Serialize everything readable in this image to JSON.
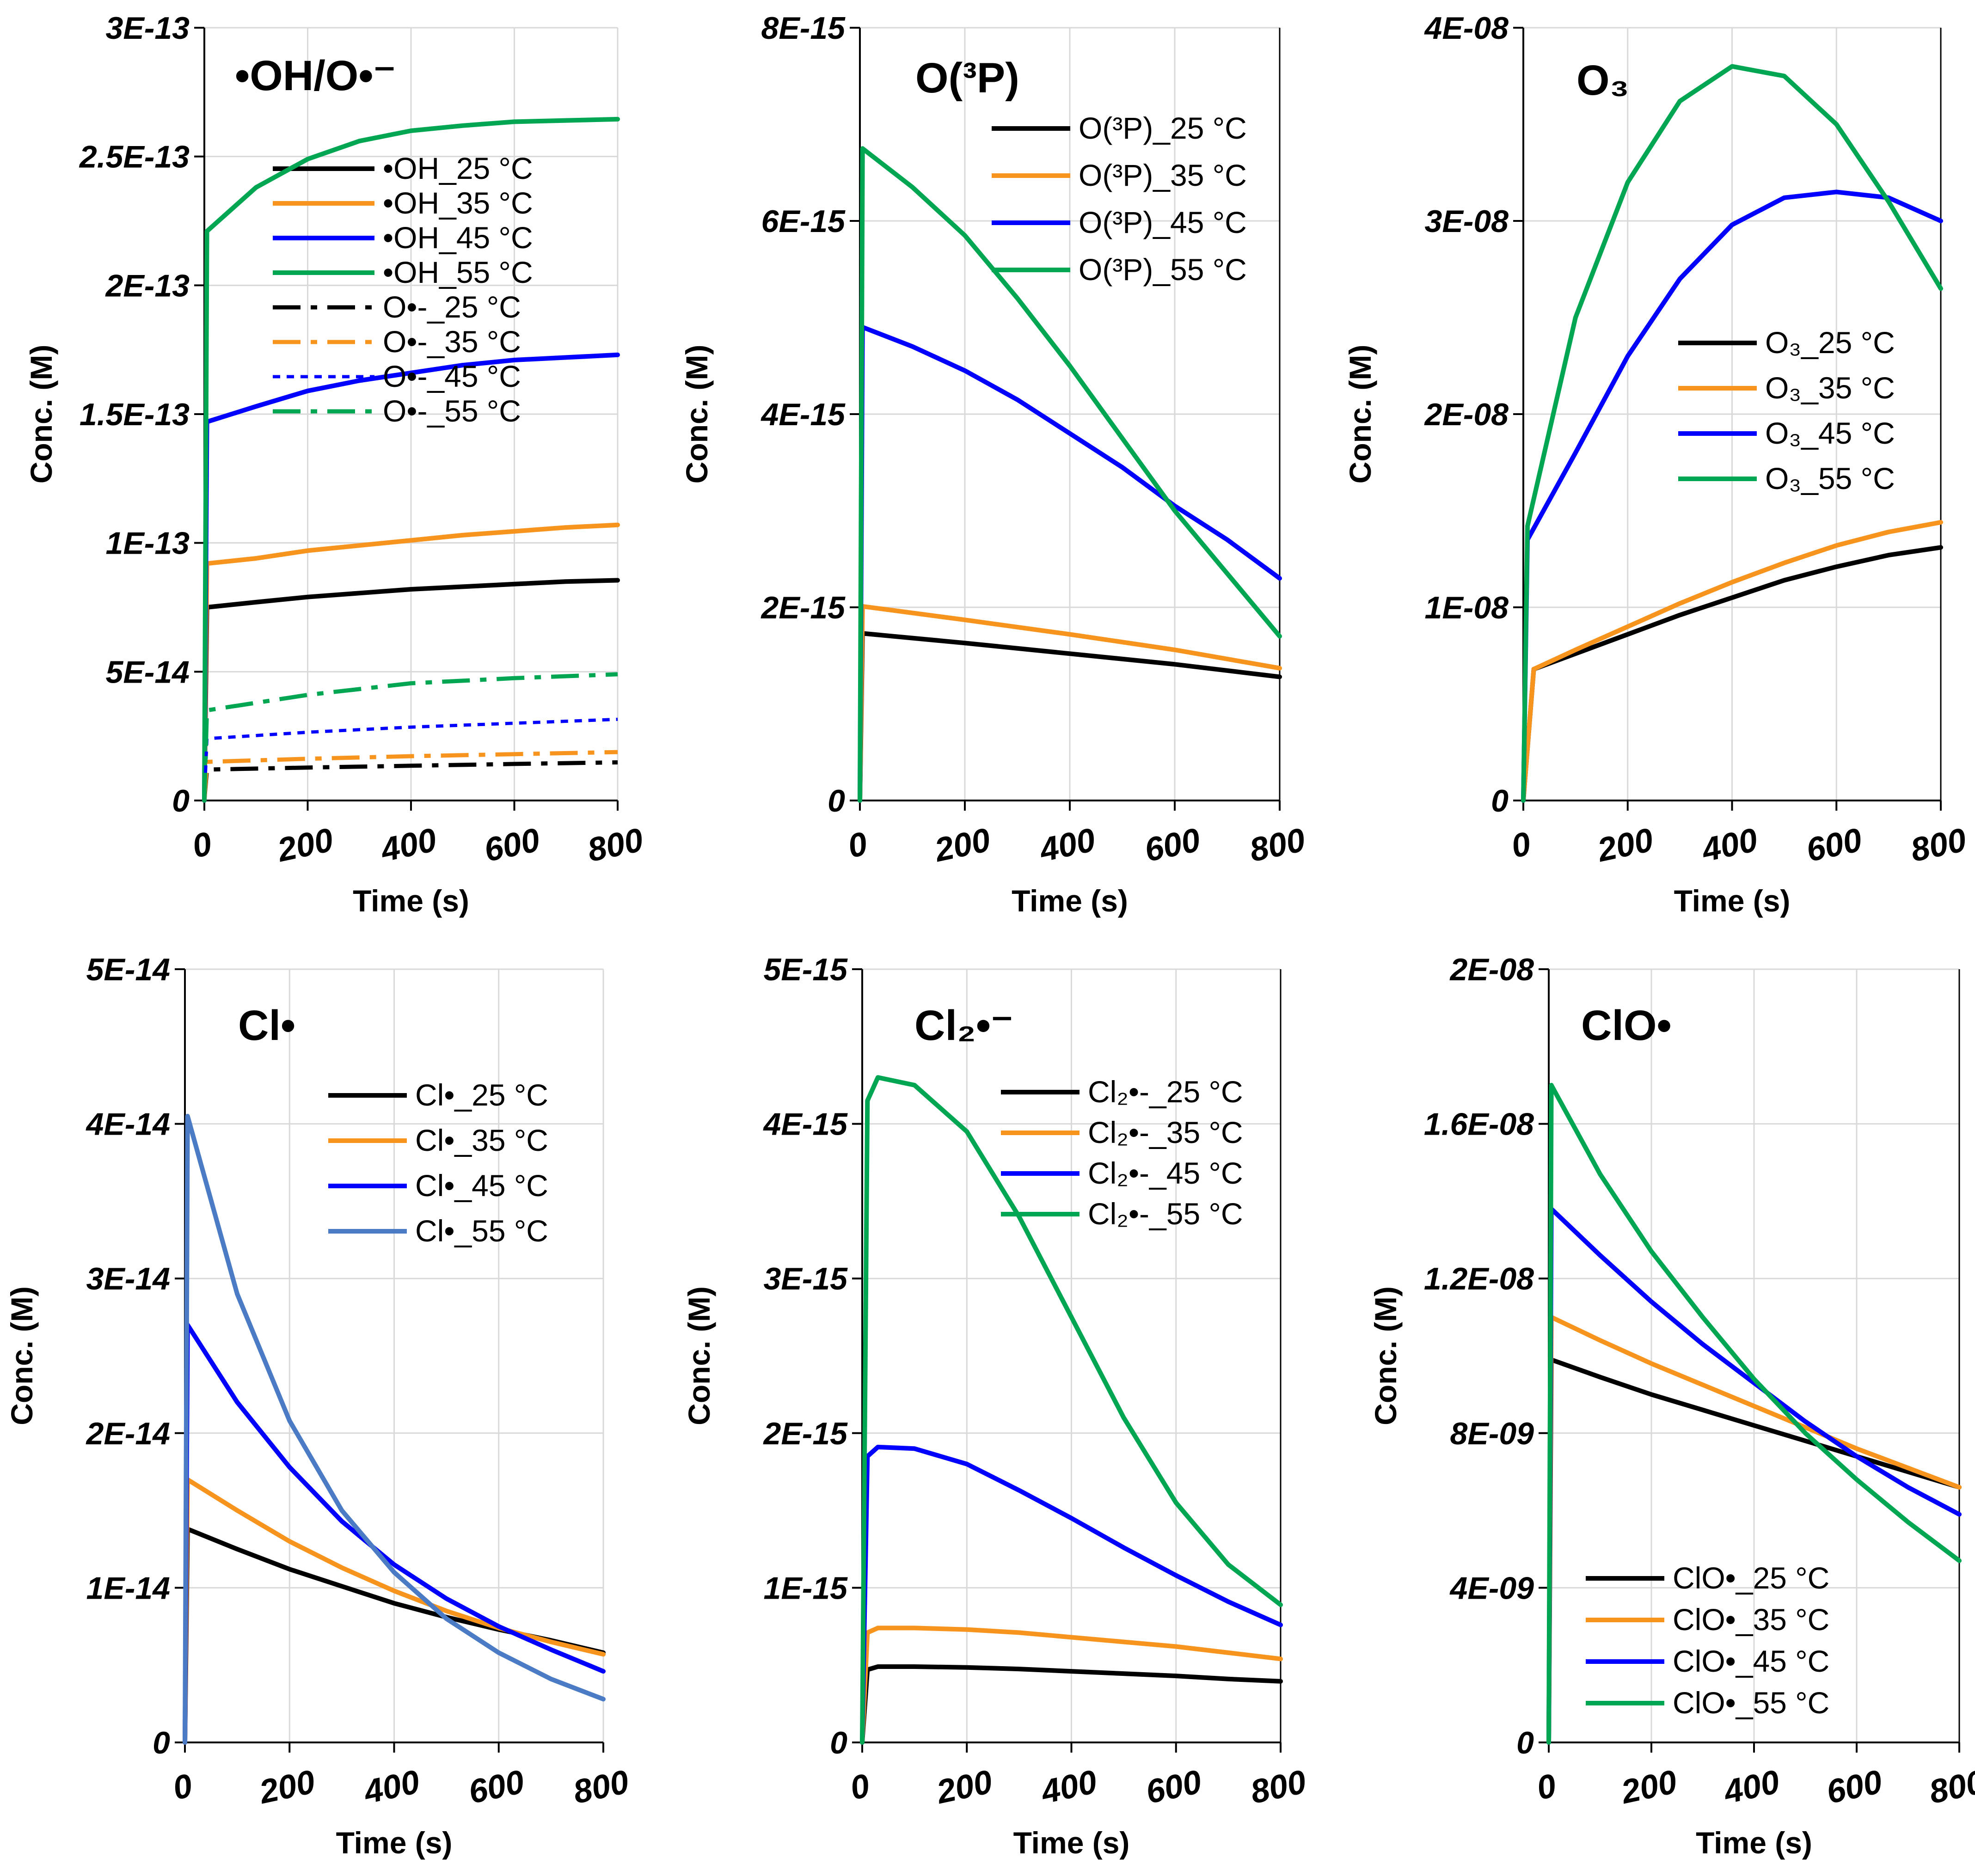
{
  "colors": {
    "t25": "#000000",
    "t35": "#F7941D",
    "t45": "#0000FF",
    "t55": "#00A651",
    "t55_cl": "#4A7BC4",
    "grid": "#D9D9D9"
  },
  "chart_data": [
    {
      "id": "oh",
      "type": "line",
      "title": "•OH/O•⁻",
      "xlabel": "Time (s)",
      "ylabel": "Conc. (M)",
      "xlim": [
        0,
        800
      ],
      "ylim": [
        0,
        3e-13
      ],
      "xticks": [
        "0",
        "200",
        "400",
        "600",
        "800"
      ],
      "yticks": [
        "0",
        "5E-14",
        "1E-13",
        "1.5E-13",
        "2E-13",
        "2.5E-13",
        "3E-13"
      ],
      "legend": "top-right",
      "series": [
        {
          "name": "•OH_25 °C",
          "color_key": "t25",
          "dash": "solid",
          "x": [
            0,
            5,
            100,
            200,
            300,
            400,
            500,
            600,
            700,
            800
          ],
          "y": [
            0,
            7.5e-14,
            7.7e-14,
            7.9e-14,
            8.05e-14,
            8.2e-14,
            8.3e-14,
            8.4e-14,
            8.5e-14,
            8.55e-14
          ]
        },
        {
          "name": "•OH_35 °C",
          "color_key": "t35",
          "dash": "solid",
          "x": [
            0,
            5,
            100,
            200,
            300,
            400,
            500,
            600,
            700,
            800
          ],
          "y": [
            0,
            9.2e-14,
            9.4e-14,
            9.7e-14,
            9.9e-14,
            1.01e-13,
            1.03e-13,
            1.045e-13,
            1.06e-13,
            1.07e-13
          ]
        },
        {
          "name": "•OH_45 °C",
          "color_key": "t45",
          "dash": "solid",
          "x": [
            0,
            5,
            100,
            200,
            300,
            400,
            500,
            600,
            700,
            800
          ],
          "y": [
            0,
            1.47e-13,
            1.53e-13,
            1.59e-13,
            1.63e-13,
            1.66e-13,
            1.69e-13,
            1.71e-13,
            1.72e-13,
            1.73e-13
          ]
        },
        {
          "name": "•OH_55 °C",
          "color_key": "t55",
          "dash": "solid",
          "x": [
            0,
            5,
            100,
            200,
            300,
            400,
            500,
            600,
            700,
            800
          ],
          "y": [
            0,
            2.21e-13,
            2.38e-13,
            2.49e-13,
            2.56e-13,
            2.6e-13,
            2.62e-13,
            2.635e-13,
            2.64e-13,
            2.645e-13
          ]
        },
        {
          "name": "O•-_25 °C",
          "color_key": "t25",
          "dash": "dashdot",
          "x": [
            0,
            5,
            200,
            400,
            600,
            800
          ],
          "y": [
            0,
            1.2e-14,
            1.28e-14,
            1.35e-14,
            1.42e-14,
            1.48e-14
          ]
        },
        {
          "name": "O•-_35 °C",
          "color_key": "t35",
          "dash": "dashdot",
          "x": [
            0,
            5,
            200,
            400,
            600,
            800
          ],
          "y": [
            0,
            1.5e-14,
            1.62e-14,
            1.72e-14,
            1.8e-14,
            1.88e-14
          ]
        },
        {
          "name": "O•-_45 °C",
          "color_key": "t45",
          "dash": "dot",
          "x": [
            0,
            5,
            200,
            400,
            600,
            800
          ],
          "y": [
            0,
            2.4e-14,
            2.65e-14,
            2.85e-14,
            3e-14,
            3.15e-14
          ]
        },
        {
          "name": "O•-_55 °C",
          "color_key": "t55",
          "dash": "dashdot",
          "x": [
            0,
            5,
            200,
            400,
            600,
            800
          ],
          "y": [
            0,
            3.5e-14,
            4.1e-14,
            4.55e-14,
            4.75e-14,
            4.9e-14
          ]
        }
      ]
    },
    {
      "id": "o3p",
      "type": "line",
      "title": "O(³P)",
      "xlabel": "Time (s)",
      "ylabel": "Conc. (M)",
      "xlim": [
        0,
        800
      ],
      "ylim": [
        0,
        8e-15
      ],
      "xticks": [
        "0",
        "200",
        "400",
        "600",
        "800"
      ],
      "yticks": [
        "0",
        "2E-15",
        "4E-15",
        "6E-15",
        "8E-15"
      ],
      "legend": "top-right",
      "series": [
        {
          "name": "O(³P)_25 °C",
          "color_key": "t25",
          "dash": "solid",
          "x": [
            0,
            5,
            200,
            400,
            600,
            800
          ],
          "y": [
            0,
            1.73e-15,
            1.63e-15,
            1.52e-15,
            1.41e-15,
            1.28e-15
          ]
        },
        {
          "name": "O(³P)_35 °C",
          "color_key": "t35",
          "dash": "solid",
          "x": [
            0,
            5,
            200,
            400,
            600,
            800
          ],
          "y": [
            0,
            2.01e-15,
            1.87e-15,
            1.72e-15,
            1.56e-15,
            1.37e-15
          ]
        },
        {
          "name": "O(³P)_45 °C",
          "color_key": "t45",
          "dash": "solid",
          "x": [
            0,
            5,
            100,
            200,
            300,
            400,
            500,
            600,
            700,
            800
          ],
          "y": [
            0,
            4.9e-15,
            4.7e-15,
            4.45e-15,
            4.15e-15,
            3.8e-15,
            3.45e-15,
            3.05e-15,
            2.7e-15,
            2.3e-15
          ]
        },
        {
          "name": "O(³P)_55 °C",
          "color_key": "t55",
          "dash": "solid",
          "x": [
            0,
            5,
            100,
            200,
            300,
            400,
            500,
            600,
            700,
            800
          ],
          "y": [
            0,
            6.75e-15,
            6.35e-15,
            5.85e-15,
            5.2e-15,
            4.5e-15,
            3.75e-15,
            3e-15,
            2.35e-15,
            1.7e-15
          ]
        }
      ]
    },
    {
      "id": "o3",
      "type": "line",
      "title": "O₃",
      "xlabel": "Time (s)",
      "ylabel": "Conc. (M)",
      "xlim": [
        0,
        800
      ],
      "ylim": [
        0,
        4e-08
      ],
      "xticks": [
        "0",
        "200",
        "400",
        "600",
        "800"
      ],
      "yticks": [
        "0",
        "1E-08",
        "2E-08",
        "3E-08",
        "4E-08"
      ],
      "legend": "middle-right",
      "series": [
        {
          "name": "O₃_25 °C",
          "color_key": "t25",
          "dash": "solid",
          "x": [
            0,
            20,
            100,
            200,
            300,
            400,
            500,
            600,
            700,
            800
          ],
          "y": [
            0,
            6.8e-09,
            7.6e-09,
            8.6e-09,
            9.6e-09,
            1.05e-08,
            1.14e-08,
            1.21e-08,
            1.27e-08,
            1.31e-08
          ]
        },
        {
          "name": "O₃_35 °C",
          "color_key": "t35",
          "dash": "solid",
          "x": [
            0,
            20,
            100,
            200,
            300,
            400,
            500,
            600,
            700,
            800
          ],
          "y": [
            0,
            6.8e-09,
            7.8e-09,
            9e-09,
            1.02e-08,
            1.13e-08,
            1.23e-08,
            1.32e-08,
            1.39e-08,
            1.44e-08
          ]
        },
        {
          "name": "O₃_45 °C",
          "color_key": "t45",
          "dash": "solid",
          "x": [
            0,
            8,
            100,
            200,
            300,
            400,
            500,
            600,
            700,
            800
          ],
          "y": [
            0,
            1.35e-08,
            1.8e-08,
            2.3e-08,
            2.7e-08,
            2.98e-08,
            3.12e-08,
            3.15e-08,
            3.12e-08,
            3e-08
          ]
        },
        {
          "name": "O₃_55 °C",
          "color_key": "t55",
          "dash": "solid",
          "x": [
            0,
            8,
            100,
            200,
            300,
            400,
            500,
            600,
            700,
            800
          ],
          "y": [
            0,
            1.42e-08,
            2.5e-08,
            3.2e-08,
            3.62e-08,
            3.8e-08,
            3.75e-08,
            3.5e-08,
            3.1e-08,
            2.65e-08
          ]
        }
      ]
    },
    {
      "id": "cl",
      "type": "line",
      "title": "Cl•",
      "xlabel": "Time (s)",
      "ylabel": "Conc. (M)",
      "xlim": [
        0,
        800
      ],
      "ylim": [
        0,
        5e-14
      ],
      "xticks": [
        "0",
        "200",
        "400",
        "600",
        "800"
      ],
      "yticks": [
        "0",
        "1E-14",
        "2E-14",
        "3E-14",
        "4E-14",
        "5E-14"
      ],
      "legend": "top-right",
      "series": [
        {
          "name": "Cl•_25 °C",
          "color_key": "t25",
          "dash": "solid",
          "x": [
            0,
            5,
            100,
            200,
            300,
            400,
            500,
            600,
            700,
            800
          ],
          "y": [
            0,
            1.38e-14,
            1.25e-14,
            1.12e-14,
            1.01e-14,
            9e-15,
            8.1e-15,
            7.3e-15,
            6.6e-15,
            5.8e-15
          ]
        },
        {
          "name": "Cl•_35 °C",
          "color_key": "t35",
          "dash": "solid",
          "x": [
            0,
            5,
            100,
            200,
            300,
            400,
            500,
            600,
            700,
            800
          ],
          "y": [
            0,
            1.7e-14,
            1.5e-14,
            1.3e-14,
            1.13e-14,
            9.8e-15,
            8.5e-15,
            7.4e-15,
            6.5e-15,
            5.7e-15
          ]
        },
        {
          "name": "Cl•_45 °C",
          "color_key": "t45",
          "dash": "solid",
          "x": [
            0,
            5,
            100,
            200,
            300,
            400,
            500,
            600,
            700,
            800
          ],
          "y": [
            0,
            2.7e-14,
            2.2e-14,
            1.78e-14,
            1.43e-14,
            1.15e-14,
            9.3e-15,
            7.5e-15,
            6e-15,
            4.6e-15
          ]
        },
        {
          "name": "Cl•_55 °C",
          "color_key": "t55_cl",
          "dash": "solid",
          "x": [
            0,
            5,
            100,
            200,
            300,
            400,
            500,
            600,
            700,
            800
          ],
          "y": [
            0,
            4.05e-14,
            2.9e-14,
            2.08e-14,
            1.5e-14,
            1.1e-14,
            8e-15,
            5.8e-15,
            4.1e-15,
            2.8e-15
          ]
        }
      ]
    },
    {
      "id": "cl2",
      "type": "line",
      "title": "Cl₂•⁻",
      "xlabel": "Time (s)",
      "ylabel": "Conc. (M)",
      "xlim": [
        0,
        800
      ],
      "ylim": [
        0,
        5e-15
      ],
      "xticks": [
        "0",
        "200",
        "400",
        "600",
        "800"
      ],
      "yticks": [
        "0",
        "1E-15",
        "2E-15",
        "3E-15",
        "4E-15",
        "5E-15"
      ],
      "legend": "top-right",
      "series": [
        {
          "name": "Cl₂•-_25 °C",
          "color_key": "t25",
          "dash": "solid",
          "x": [
            0,
            10,
            30,
            100,
            200,
            300,
            400,
            500,
            600,
            700,
            800
          ],
          "y": [
            0,
            4.7e-16,
            4.9e-16,
            4.9e-16,
            4.85e-16,
            4.75e-16,
            4.6e-16,
            4.45e-16,
            4.3e-16,
            4.1e-16,
            3.95e-16
          ]
        },
        {
          "name": "Cl₂•-_35 °C",
          "color_key": "t35",
          "dash": "solid",
          "x": [
            0,
            10,
            30,
            100,
            200,
            300,
            400,
            500,
            600,
            700,
            800
          ],
          "y": [
            0,
            7.1e-16,
            7.4e-16,
            7.4e-16,
            7.3e-16,
            7.1e-16,
            6.8e-16,
            6.5e-16,
            6.2e-16,
            5.8e-16,
            5.4e-16
          ]
        },
        {
          "name": "Cl₂•-_45 °C",
          "color_key": "t45",
          "dash": "solid",
          "x": [
            0,
            10,
            30,
            100,
            200,
            300,
            400,
            500,
            600,
            700,
            800
          ],
          "y": [
            0,
            1.85e-15,
            1.91e-15,
            1.9e-15,
            1.8e-15,
            1.63e-15,
            1.45e-15,
            1.26e-15,
            1.08e-15,
            9.1e-16,
            7.6e-16
          ]
        },
        {
          "name": "Cl₂•-_55 °C",
          "color_key": "t55",
          "dash": "solid",
          "x": [
            0,
            10,
            30,
            100,
            200,
            300,
            400,
            500,
            600,
            700,
            800
          ],
          "y": [
            0,
            4.15e-15,
            4.3e-15,
            4.25e-15,
            3.95e-15,
            3.4e-15,
            2.75e-15,
            2.1e-15,
            1.55e-15,
            1.15e-15,
            8.9e-16
          ]
        }
      ]
    },
    {
      "id": "clo",
      "type": "line",
      "title": "ClO•",
      "xlabel": "Time (s)",
      "ylabel": "Conc. (M)",
      "xlim": [
        0,
        800
      ],
      "ylim": [
        0,
        2e-08
      ],
      "xticks": [
        "0",
        "200",
        "400",
        "600",
        "800"
      ],
      "yticks": [
        "0",
        "4E-09",
        "8E-09",
        "1.2E-08",
        "1.6E-08",
        "2E-08"
      ],
      "legend": "bottom-right",
      "series": [
        {
          "name": "ClO•_25 °C",
          "color_key": "t25",
          "dash": "solid",
          "x": [
            0,
            5,
            100,
            200,
            300,
            400,
            500,
            600,
            700,
            800
          ],
          "y": [
            0,
            9.9e-09,
            9.45e-09,
            9e-09,
            8.6e-09,
            8.2e-09,
            7.8e-09,
            7.4e-09,
            7e-09,
            6.6e-09
          ]
        },
        {
          "name": "ClO•_35 °C",
          "color_key": "t35",
          "dash": "solid",
          "x": [
            0,
            5,
            100,
            200,
            300,
            400,
            500,
            600,
            700,
            800
          ],
          "y": [
            0,
            1.1e-08,
            1.04e-08,
            9.8e-09,
            9.25e-09,
            8.7e-09,
            8.15e-09,
            7.6e-09,
            7.1e-09,
            6.6e-09
          ]
        },
        {
          "name": "ClO•_45 °C",
          "color_key": "t45",
          "dash": "solid",
          "x": [
            0,
            5,
            100,
            200,
            300,
            400,
            500,
            600,
            700,
            800
          ],
          "y": [
            0,
            1.38e-08,
            1.26e-08,
            1.14e-08,
            1.03e-08,
            9.3e-09,
            8.3e-09,
            7.4e-09,
            6.6e-09,
            5.9e-09
          ]
        },
        {
          "name": "ClO•_55 °C",
          "color_key": "t55",
          "dash": "solid",
          "x": [
            0,
            5,
            100,
            200,
            300,
            400,
            500,
            600,
            700,
            800
          ],
          "y": [
            0,
            1.7e-08,
            1.47e-08,
            1.27e-08,
            1.1e-08,
            9.4e-09,
            8e-09,
            6.8e-09,
            5.7e-09,
            4.7e-09
          ]
        }
      ]
    }
  ]
}
